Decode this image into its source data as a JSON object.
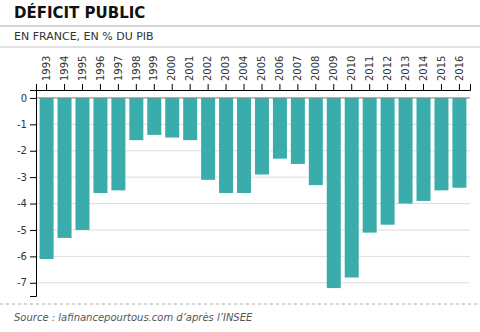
{
  "chart_data": {
    "type": "bar",
    "title": "DÉFICIT PUBLIC",
    "subtitle": "EN FRANCE, EN % DU PIB",
    "source": "Source : lafinancepourtous.com d’après l’INSEE",
    "categories": [
      1993,
      1994,
      1995,
      1996,
      1997,
      1998,
      1999,
      2000,
      2001,
      2002,
      2003,
      2004,
      2005,
      2006,
      2007,
      2008,
      2009,
      2010,
      2011,
      2012,
      2013,
      2014,
      2015,
      2016
    ],
    "values": [
      -6.1,
      -5.3,
      -5.0,
      -3.6,
      -3.5,
      -1.6,
      -1.4,
      -1.5,
      -1.6,
      -3.1,
      -3.6,
      -3.6,
      -2.9,
      -2.3,
      -2.5,
      -3.3,
      -7.2,
      -6.8,
      -5.1,
      -4.8,
      -4.0,
      -3.9,
      -3.5,
      -3.4
    ],
    "color": "#3aacac",
    "ylim": [
      -7.5,
      0.3
    ],
    "yticks": [
      0,
      -1,
      -2,
      -3,
      -4,
      -5,
      -6,
      -7
    ],
    "grid": true
  }
}
